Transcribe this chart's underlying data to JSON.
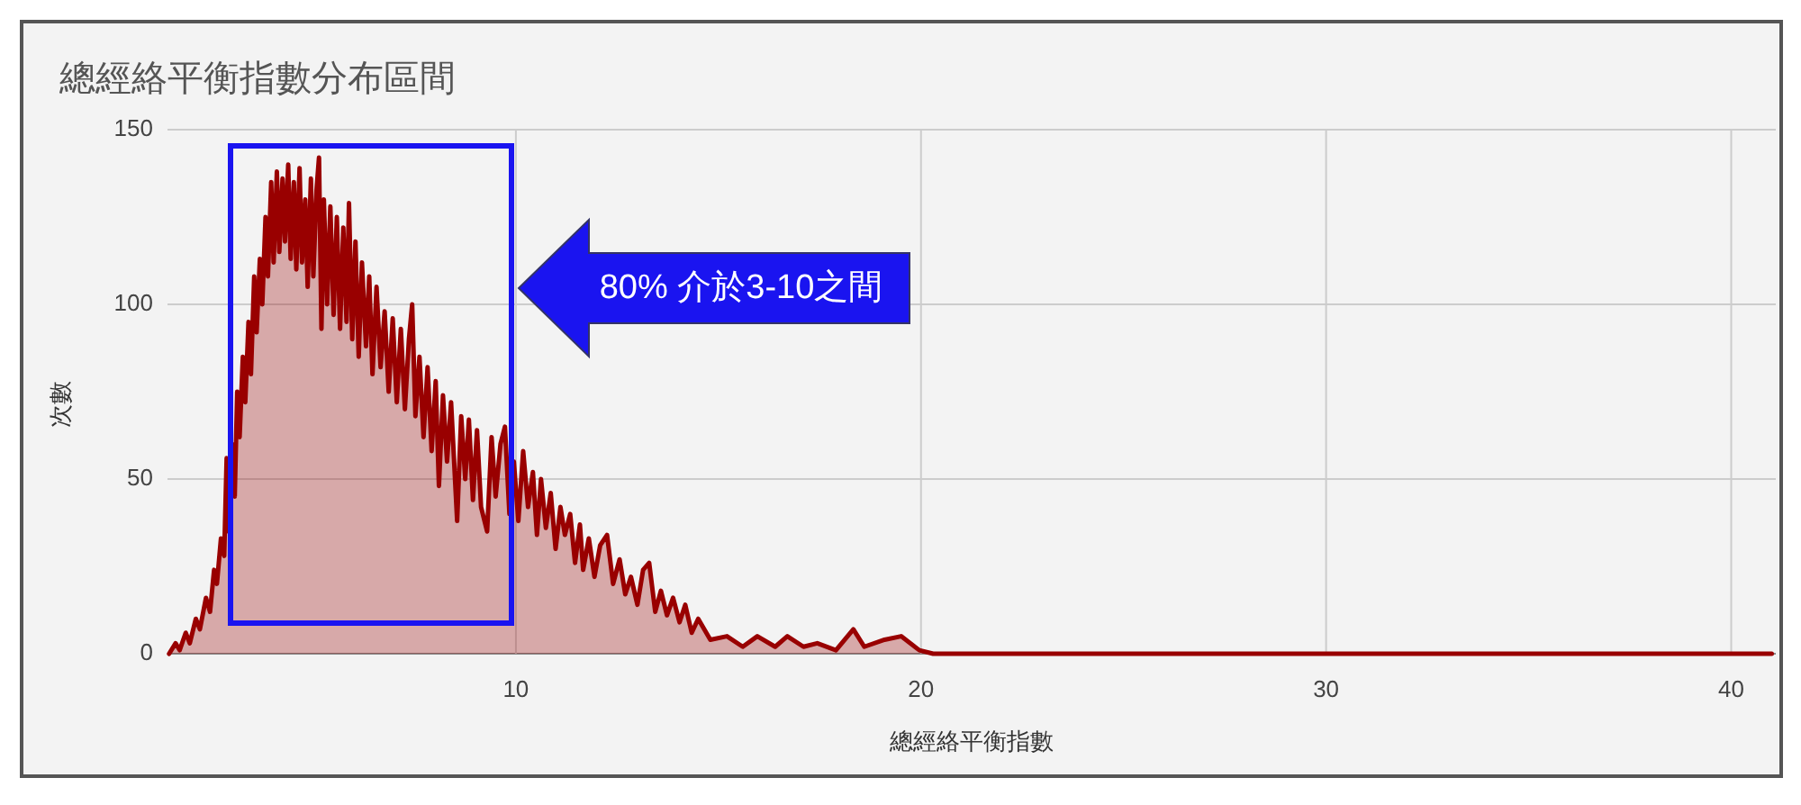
{
  "chart_data": {
    "type": "area",
    "title": "總經絡平衡指數分布區間",
    "xlabel": "總經絡平衡指數",
    "ylabel": "次數",
    "x": [
      1.44,
      1.6,
      1.7,
      1.85,
      1.95,
      2.1,
      2.2,
      2.35,
      2.45,
      2.55,
      2.62,
      2.72,
      2.8,
      2.86,
      2.9,
      3.0,
      3.06,
      3.12,
      3.18,
      3.26,
      3.32,
      3.4,
      3.46,
      3.54,
      3.6,
      3.68,
      3.74,
      3.82,
      3.88,
      3.96,
      4.02,
      4.1,
      4.16,
      4.24,
      4.3,
      4.38,
      4.44,
      4.52,
      4.58,
      4.66,
      4.72,
      4.8,
      4.86,
      4.94,
      5.0,
      5.08,
      5.14,
      5.2,
      5.26,
      5.34,
      5.42,
      5.5,
      5.58,
      5.66,
      5.74,
      5.82,
      5.88,
      5.96,
      6.04,
      6.12,
      6.2,
      6.3,
      6.38,
      6.46,
      6.56,
      6.66,
      6.76,
      6.86,
      6.96,
      7.06,
      7.16,
      7.26,
      7.36,
      7.44,
      7.52,
      7.62,
      7.72,
      7.82,
      7.92,
      8.02,
      8.1,
      8.2,
      8.3,
      8.4,
      8.55,
      8.65,
      8.75,
      8.84,
      8.94,
      9.04,
      9.14,
      9.29,
      9.4,
      9.5,
      9.62,
      9.73,
      9.84,
      9.95,
      10.06,
      10.18,
      10.3,
      10.42,
      10.52,
      10.62,
      10.74,
      10.86,
      10.98,
      11.1,
      11.21,
      11.34,
      11.46,
      11.58,
      11.66,
      11.8,
      11.94,
      12.08,
      12.25,
      12.4,
      12.56,
      12.7,
      12.84,
      13.0,
      13.14,
      13.29,
      13.44,
      13.58,
      13.73,
      13.88,
      14.04,
      14.18,
      14.34,
      14.5,
      14.8,
      15.21,
      15.6,
      15.96,
      16.4,
      16.7,
      17.1,
      17.44,
      17.9,
      18.33,
      18.6,
      19.1,
      19.51,
      19.96,
      20.3,
      41.0
    ],
    "series": [
      {
        "color": "#990000",
        "values": [
          0,
          3,
          1,
          6,
          3,
          10,
          7,
          16,
          12,
          24,
          20,
          33,
          28,
          56,
          35,
          60,
          45,
          75,
          62,
          85,
          72,
          95,
          80,
          108,
          92,
          113,
          100,
          125,
          108,
          135,
          112,
          138,
          115,
          136,
          118,
          140,
          113,
          135,
          110,
          139,
          112,
          130,
          105,
          136,
          108,
          133,
          142,
          93,
          130,
          100,
          128,
          97,
          125,
          93,
          122,
          95,
          129,
          90,
          118,
          85,
          112,
          88,
          108,
          80,
          105,
          82,
          98,
          75,
          96,
          72,
          93,
          70,
          90,
          100,
          68,
          85,
          62,
          82,
          58,
          78,
          48,
          74,
          55,
          72,
          38,
          68,
          50,
          67,
          44,
          64,
          42,
          35,
          62,
          45,
          60,
          65,
          40,
          55,
          38,
          58,
          42,
          52,
          34,
          50,
          36,
          46,
          30,
          42,
          34,
          40,
          26,
          37,
          24,
          33,
          22,
          31,
          34,
          20,
          27,
          17,
          22,
          14,
          24,
          26,
          12,
          18,
          11,
          16,
          9,
          14,
          6,
          10,
          4,
          5,
          2,
          5,
          2,
          5,
          2,
          3,
          1,
          7,
          2,
          4,
          5,
          1,
          0,
          0
        ]
      }
    ],
    "xlim": [
      1.4,
      41.1
    ],
    "ylim": [
      0,
      150
    ],
    "xticks": [
      10,
      20,
      30,
      40
    ],
    "yticks": [
      0,
      50,
      100,
      150
    ],
    "grid": true,
    "annotations": [
      "80% 介於3-10之間"
    ]
  }
}
